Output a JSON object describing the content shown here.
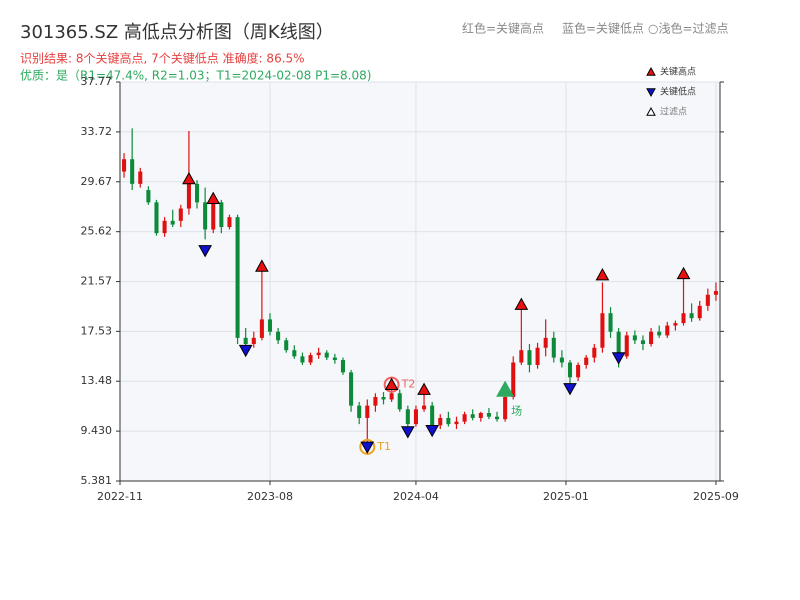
{
  "chart_data": {
    "type": "candlestick",
    "title": "301365.SZ 高低点分析图（周K线图）",
    "subtitle": "识别结果: 8个关键高点, 7个关键低点  准确度: 86.5%",
    "note": "优质：是（R1=47.4%, R2=1.03；T1=2024-02-08 P1=8.08)",
    "header_legend": [
      "红色=关键高点",
      "蓝色=关键低点",
      "○浅色=过滤点"
    ],
    "up_color": "#e01010",
    "down_color": "#0c8a3a",
    "grid": true,
    "x": [
      0,
      1,
      2,
      3,
      4,
      5,
      6,
      7,
      8,
      9,
      10,
      11,
      12,
      13,
      14,
      15,
      16,
      17,
      18,
      19,
      20,
      21,
      22,
      23,
      24,
      25,
      26,
      27,
      28,
      29,
      30,
      31,
      32,
      33,
      34,
      35,
      36,
      37,
      38,
      39,
      40,
      41,
      42,
      43,
      44,
      45,
      46,
      47,
      48,
      49,
      50,
      51,
      52,
      53,
      54,
      55,
      56,
      57,
      58,
      59,
      60,
      61,
      62,
      63,
      64,
      65,
      66,
      67,
      68,
      69,
      70,
      71,
      72,
      73
    ],
    "open": [
      30.5,
      31.5,
      29.5,
      29,
      28,
      25.5,
      26.5,
      26.5,
      27.5,
      29.5,
      28,
      25.8,
      28,
      26,
      26.8,
      17,
      16.5,
      17,
      18.5,
      17.5,
      16.8,
      16,
      15.5,
      15,
      15.6,
      15.8,
      15.4,
      15.2,
      14.2,
      11.5,
      10.5,
      11.5,
      12.2,
      12,
      12.5,
      11.2,
      10,
      11.2,
      11.5,
      9.9,
      10.5,
      10,
      10.2,
      10.8,
      10.5,
      10.9,
      10.6,
      10.4,
      12.2,
      15,
      16,
      14.8,
      16.2,
      17,
      15.4,
      15,
      13.8,
      14.8,
      15.4,
      16.2,
      19,
      17.5,
      15.5,
      17.2,
      16.8,
      16.5,
      17.5,
      17.2,
      18,
      18.2,
      19,
      18.6,
      19.6,
      20.5
    ],
    "high": [
      32,
      34,
      30.8,
      29.3,
      28.2,
      26.8,
      27.4,
      27.8,
      33.8,
      29.8,
      29.2,
      28.5,
      28.2,
      27,
      27,
      17.8,
      17.5,
      22.8,
      19,
      17.8,
      17,
      16.4,
      15.8,
      15.8,
      16.2,
      16,
      15.7,
      15.4,
      14.4,
      11.8,
      12,
      12.5,
      12.6,
      13.2,
      12.8,
      11.5,
      11.5,
      12.8,
      11.8,
      10.8,
      11,
      10.6,
      11,
      11.2,
      11,
      11.3,
      11,
      12.5,
      15.5,
      19.3,
      16.5,
      16.6,
      18.5,
      17.5,
      16,
      15.2,
      15,
      15.6,
      16.5,
      21.5,
      19.5,
      17.8,
      17.5,
      17.6,
      17.2,
      17.8,
      18,
      18.3,
      18.4,
      21.8,
      19.8,
      20,
      21,
      21.5
    ],
    "low": [
      30,
      29,
      29.2,
      27.8,
      25.3,
      25.2,
      26,
      26,
      27,
      27.5,
      25,
      25.5,
      25.5,
      25.8,
      16.5,
      16,
      16.2,
      16.8,
      17.2,
      16.5,
      15.8,
      15.3,
      14.8,
      14.8,
      15.3,
      15.2,
      14.9,
      14,
      11,
      10,
      8.08,
      11,
      11.6,
      11.8,
      11,
      9.5,
      9.8,
      11,
      9.5,
      9.6,
      9.8,
      9.6,
      10,
      10.3,
      10.2,
      10.4,
      10.2,
      10.2,
      12,
      14.8,
      14.2,
      14.5,
      15.5,
      15,
      14.6,
      13,
      13.5,
      14.5,
      15,
      15.8,
      17,
      14.6,
      15.3,
      16.5,
      16,
      16.3,
      17,
      17,
      17.6,
      18,
      18.3,
      18.4,
      19.2,
      20
    ],
    "close": [
      31.5,
      29.5,
      30.5,
      28,
      25.5,
      26.5,
      26.2,
      27.5,
      29.5,
      28,
      25.8,
      28,
      26,
      26.8,
      17,
      16.5,
      17,
      18.5,
      17.5,
      16.8,
      16,
      15.5,
      15,
      15.6,
      15.8,
      15.4,
      15.2,
      14.2,
      11.5,
      10.5,
      11.5,
      12.2,
      12,
      12.5,
      11.2,
      10,
      11.2,
      11.5,
      9.9,
      10.5,
      10,
      10.2,
      10.8,
      10.5,
      10.9,
      10.6,
      10.4,
      12.2,
      15,
      16,
      14.8,
      16.2,
      17,
      15.4,
      15,
      13.8,
      14.8,
      15.4,
      16.2,
      19,
      17.5,
      15.5,
      17.2,
      16.8,
      16.5,
      17.5,
      17.2,
      18,
      18.2,
      19,
      18.6,
      19.6,
      20.5,
      20.8
    ],
    "markers": [
      {
        "name": "关键高点",
        "shape": "up",
        "color": "#e81010",
        "x": [
          8,
          11,
          17,
          33,
          37,
          49,
          59,
          69
        ],
        "values": [
          29.9,
          28.3,
          22.8,
          13.2,
          12.8,
          19.7,
          22.1,
          22.2
        ]
      },
      {
        "name": "关键低点",
        "shape": "down",
        "color": "#1010d0",
        "x": [
          10,
          15,
          30,
          35,
          38,
          55,
          61
        ],
        "values": [
          24.1,
          16.0,
          8.15,
          9.4,
          9.5,
          12.9,
          15.4
        ]
      },
      {
        "name": "过滤点",
        "shape": "up",
        "color": "#ffffff",
        "x": [],
        "values": []
      }
    ],
    "annotations": [
      {
        "text": "T1",
        "x": 30,
        "y": 8.15,
        "color": "#f0a020"
      },
      {
        "text": "T2",
        "x": 33,
        "y": 13.2,
        "color": "#f06060"
      }
    ],
    "signal": {
      "text": "场",
      "x": 47,
      "y": 12.8,
      "color": "#2eaa60"
    },
    "xlim": [
      -0.5,
      73.5
    ],
    "xticks": [
      {
        "value": -0.5,
        "label": "2022-11"
      },
      {
        "value": 18,
        "label": "2023-08"
      },
      {
        "value": 36,
        "label": "2024-04"
      },
      {
        "value": 54.5,
        "label": "2025-01"
      },
      {
        "value": 73,
        "label": "2025-09"
      }
    ],
    "ylim": [
      5.381,
      37.77
    ],
    "yticks": [
      5.381,
      {
        "value": 9.43,
        "label": "9.430"
      },
      13.48,
      17.53,
      21.57,
      25.62,
      29.67,
      33.72,
      37.77
    ]
  }
}
